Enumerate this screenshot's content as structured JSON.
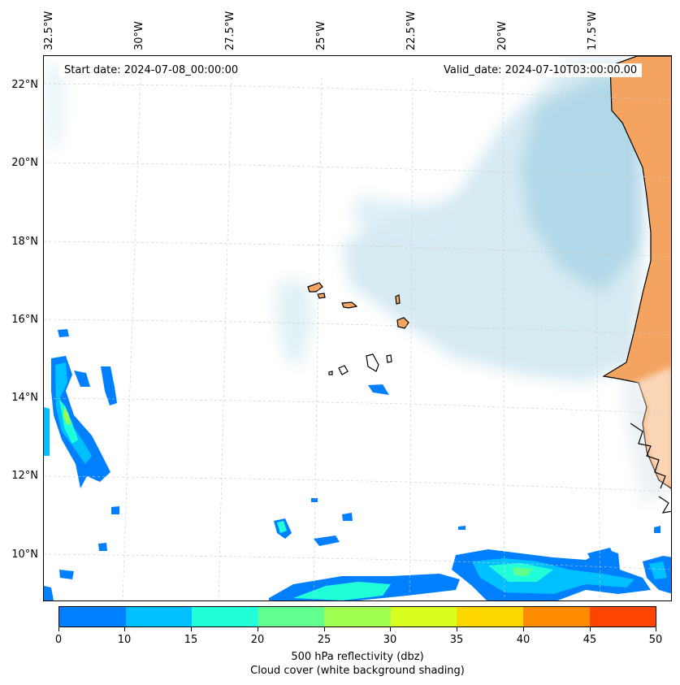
{
  "header": {
    "start_date": "Start date: 2024-07-08_00:00:00",
    "valid_date": "Valid_date: 2024-07-10T03:00:00.00"
  },
  "map": {
    "lon_labels": [
      "32.5°W",
      "30°W",
      "27.5°W",
      "25°W",
      "22.5°W",
      "20°W",
      "17.5°W"
    ],
    "lat_labels": [
      "22°N",
      "20°N",
      "18°N",
      "16°N",
      "14°N",
      "12°N",
      "10°N"
    ],
    "land_color": "#f4a460",
    "coast_color": "#000000"
  },
  "colorbar": {
    "ticks": [
      "0",
      "10",
      "15",
      "20",
      "25",
      "30",
      "35",
      "40",
      "45",
      "50"
    ],
    "colors": [
      "#0080ff",
      "#00c0ff",
      "#20ffd8",
      "#60ff90",
      "#a0ff50",
      "#d8ff20",
      "#ffd700",
      "#ff8c00",
      "#ff4500"
    ],
    "label_line1": "500 hPa reflectivity (dbz)",
    "label_line2": "Cloud cover (white background shading)"
  },
  "chart_data": {
    "type": "heatmap",
    "xlabel": "",
    "ylabel": "",
    "colorbar_range": [
      0,
      50
    ],
    "colorbar_levels": [
      0,
      10,
      15,
      20,
      25,
      30,
      35,
      40,
      45,
      50
    ],
    "lon_range": [
      -32.5,
      -15.5
    ],
    "lat_range": [
      9,
      22.8
    ]
  }
}
